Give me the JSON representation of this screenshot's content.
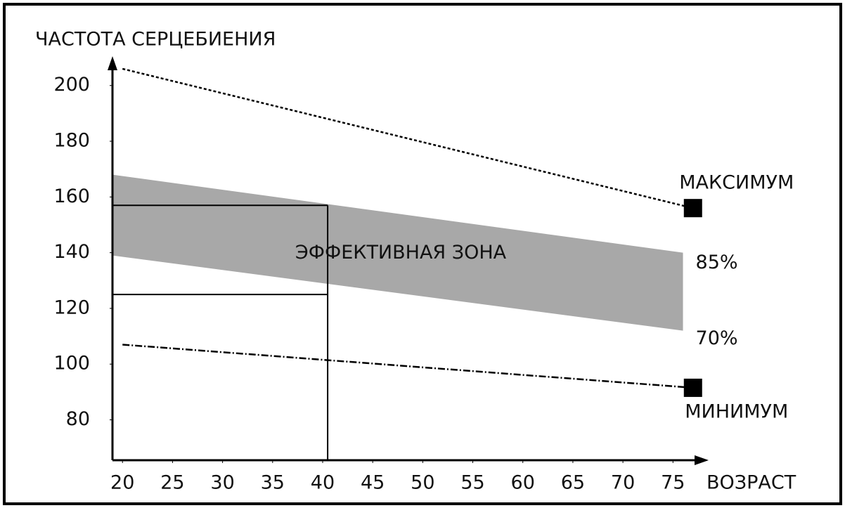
{
  "chart_data": {
    "type": "line",
    "y_label": "ЧАСТОТА СЕРЦЕБИЕНИЯ",
    "x_label": "ВОЗРАСТ",
    "xlim": [
      19,
      78
    ],
    "ylim": [
      65.5,
      208
    ],
    "xticks": [
      20,
      25,
      30,
      35,
      40,
      45,
      50,
      55,
      60,
      65,
      70,
      75
    ],
    "yticks": [
      80,
      100,
      120,
      140,
      160,
      180,
      200
    ],
    "series": [
      {
        "name": "МАКСИМУМ",
        "color": "#000000",
        "x": [
          20,
          77
        ],
        "values": [
          206,
          156
        ]
      },
      {
        "name": "МИНИМУМ",
        "color": "#000000",
        "x": [
          20,
          77
        ],
        "values": [
          107,
          91.5
        ]
      }
    ],
    "band": {
      "label": "ЭФФЕКТИВНАЯ ЗОНА",
      "color": "#a8a8a8",
      "x": [
        19,
        76
      ],
      "upper": [
        168,
        140
      ],
      "lower": [
        139,
        112
      ],
      "upper_label": "85%",
      "lower_label": "70%"
    },
    "guide": {
      "x": 40.5,
      "y": [
        157,
        125
      ]
    }
  }
}
